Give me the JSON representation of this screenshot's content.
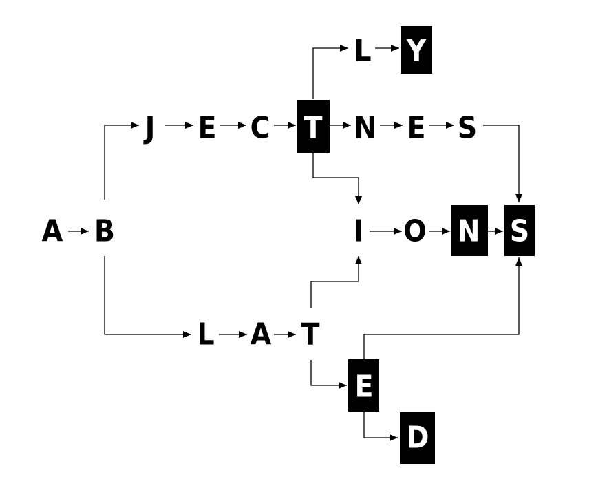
{
  "diagram": {
    "type": "letter-transition-graph",
    "colors": {
      "fill": "#000000",
      "stroke": "#000000",
      "text_on_box": "#ffffff",
      "text": "#000000",
      "background": "#ffffff"
    },
    "nodes": [
      {
        "id": "n_A",
        "letter": "A",
        "terminal": false
      },
      {
        "id": "n_B",
        "letter": "B",
        "terminal": false
      },
      {
        "id": "n_J",
        "letter": "J",
        "terminal": false
      },
      {
        "id": "n_E1",
        "letter": "E",
        "terminal": false
      },
      {
        "id": "n_C",
        "letter": "C",
        "terminal": false
      },
      {
        "id": "n_T1",
        "letter": "T",
        "terminal": true
      },
      {
        "id": "n_N1",
        "letter": "N",
        "terminal": false
      },
      {
        "id": "n_E2",
        "letter": "E",
        "terminal": false
      },
      {
        "id": "n_S1",
        "letter": "S",
        "terminal": false
      },
      {
        "id": "n_L1",
        "letter": "L",
        "terminal": false
      },
      {
        "id": "n_Y",
        "letter": "Y",
        "terminal": true
      },
      {
        "id": "n_I",
        "letter": "I",
        "terminal": false
      },
      {
        "id": "n_O",
        "letter": "O",
        "terminal": false
      },
      {
        "id": "n_N2",
        "letter": "N",
        "terminal": true
      },
      {
        "id": "n_S2",
        "letter": "S",
        "terminal": true
      },
      {
        "id": "n_L2",
        "letter": "L",
        "terminal": false
      },
      {
        "id": "n_A2",
        "letter": "A",
        "terminal": false
      },
      {
        "id": "n_T2",
        "letter": "T",
        "terminal": false
      },
      {
        "id": "n_E3",
        "letter": "E",
        "terminal": true
      },
      {
        "id": "n_D",
        "letter": "D",
        "terminal": true
      }
    ],
    "edges": [
      {
        "from": "n_A",
        "to": "n_B"
      },
      {
        "from": "n_B",
        "to": "n_J"
      },
      {
        "from": "n_B",
        "to": "n_L2"
      },
      {
        "from": "n_J",
        "to": "n_E1"
      },
      {
        "from": "n_E1",
        "to": "n_C"
      },
      {
        "from": "n_C",
        "to": "n_T1"
      },
      {
        "from": "n_T1",
        "to": "n_N1"
      },
      {
        "from": "n_T1",
        "to": "n_L1"
      },
      {
        "from": "n_T1",
        "to": "n_I"
      },
      {
        "from": "n_N1",
        "to": "n_E2"
      },
      {
        "from": "n_E2",
        "to": "n_S1"
      },
      {
        "from": "n_S1",
        "to": "n_S2"
      },
      {
        "from": "n_L1",
        "to": "n_Y"
      },
      {
        "from": "n_I",
        "to": "n_O"
      },
      {
        "from": "n_O",
        "to": "n_N2"
      },
      {
        "from": "n_N2",
        "to": "n_S2"
      },
      {
        "from": "n_L2",
        "to": "n_A2"
      },
      {
        "from": "n_A2",
        "to": "n_T2"
      },
      {
        "from": "n_T2",
        "to": "n_I"
      },
      {
        "from": "n_T2",
        "to": "n_E3"
      },
      {
        "from": "n_E3",
        "to": "n_D"
      },
      {
        "from": "n_E3",
        "to": "n_S2"
      }
    ]
  }
}
